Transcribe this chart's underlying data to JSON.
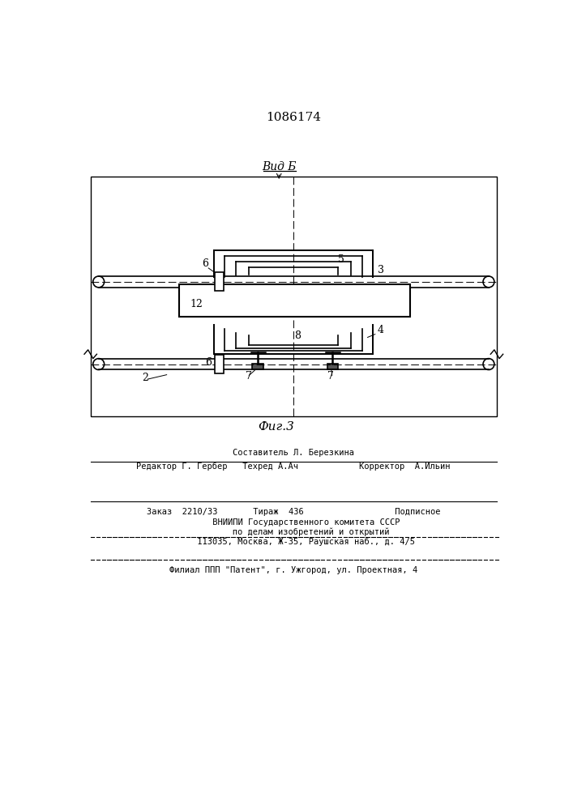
{
  "title": "1086174",
  "view_label": "Вид Б",
  "fig_label": "Фиг.3",
  "bg_color": "#ffffff",
  "line_color": "#000000",
  "footer_line1": "Составитель Л. Березкина",
  "footer_line2": "Редактор Г. Гербер   Техред А.Ач            Корректор  А.Ильин",
  "footer_line3": "Заказ  2210/33       Тираж  436                  Подписное",
  "footer_line4": "     ВНИИПИ Государственного комитета СССР",
  "footer_line5": "       по делам изобретений и открытий",
  "footer_line6": "     113035, Москва, Ж-35, Раушская наб., д. 4/5",
  "footer_line7": "Филиал ППП \"Патент\", г. Ужгород, ул. Проектная, 4"
}
